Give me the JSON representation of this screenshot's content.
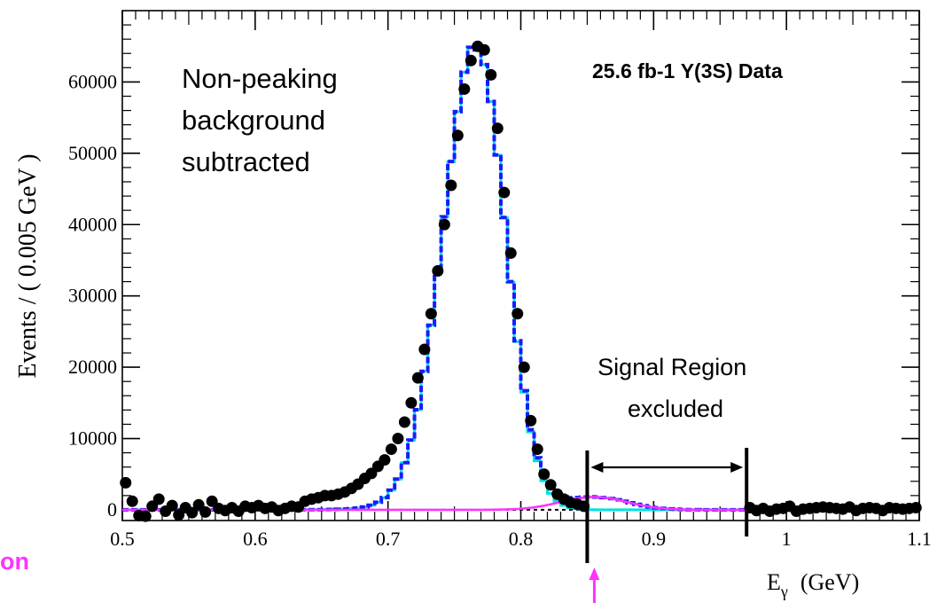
{
  "chart_data": {
    "type": "scatter",
    "xlabel": "E",
    "xlabel_sub": "γ",
    "xlabel_unit": "(GeV)",
    "ylabel": "Events / ( 0.005 GeV )",
    "xlim": [
      0.5,
      1.1
    ],
    "ylim": [
      -1500,
      70000
    ],
    "x_ticks": [
      "0.5",
      "0.6",
      "0.7",
      "0.8",
      "0.9",
      "1",
      "1.1"
    ],
    "y_ticks": [
      "0",
      "10000",
      "20000",
      "30000",
      "40000",
      "50000",
      "60000"
    ],
    "legend_text": "25.6 fb-1 Υ(3S) Data",
    "annotations": {
      "nonpeaking": [
        "Non-peaking",
        "background",
        "subtracted"
      ],
      "signal_region": [
        "Signal Region",
        "excluded"
      ],
      "partial_left_label": "on"
    },
    "signal_region_bounds": [
      0.85,
      0.97
    ],
    "colors": {
      "data": "#000000",
      "total_fit": "#1a1aff",
      "peak_component": "#00e0e0",
      "tail_component": "#ff33ff",
      "baseline": "#000000",
      "arrow": "#ff33ff"
    },
    "series": [
      {
        "x": [
          0.5025,
          0.5075,
          0.5125,
          0.5175,
          0.5225,
          0.5275,
          0.5325,
          0.5375,
          0.5425,
          0.5475,
          0.5525,
          0.5575,
          0.5625,
          0.5675,
          0.5725,
          0.5775,
          0.5825,
          0.5875,
          0.5925,
          0.5975,
          0.6025,
          0.6075,
          0.6125,
          0.6175,
          0.6225,
          0.6275,
          0.6325,
          0.6375,
          0.6425,
          0.6475,
          0.6525,
          0.6575,
          0.6625,
          0.6675,
          0.6725,
          0.6775,
          0.6825,
          0.6875,
          0.6925,
          0.6975,
          0.7025,
          0.7075,
          0.7125,
          0.7175,
          0.7225,
          0.7275,
          0.7325,
          0.7375,
          0.7425,
          0.7475,
          0.7525,
          0.7575,
          0.7625,
          0.7675,
          0.7725,
          0.7775,
          0.7825,
          0.7875,
          0.7925,
          0.7975,
          0.8025,
          0.8075,
          0.8125,
          0.8175,
          0.8225,
          0.8275,
          0.8325,
          0.8375,
          0.8425,
          0.8475,
          0.9725,
          0.9775,
          0.9825,
          0.9875,
          0.9925,
          0.9975,
          1.0025,
          1.0075,
          1.0125,
          1.0175,
          1.0225,
          1.0275,
          1.0325,
          1.0375,
          1.0425,
          1.0475,
          1.0525,
          1.0575,
          1.0625,
          1.0675,
          1.0725,
          1.0775,
          1.0825,
          1.0875,
          1.0925,
          1.0975
        ],
        "y": [
          3800,
          1200,
          -800,
          -900,
          500,
          1500,
          -200,
          600,
          -700,
          300,
          -400,
          700,
          -300,
          1200,
          200,
          -100,
          300,
          -200,
          500,
          300,
          600,
          200,
          400,
          -100,
          200,
          500,
          400,
          1200,
          1500,
          1700,
          2000,
          2000,
          2200,
          2500,
          3000,
          3600,
          4400,
          5100,
          6100,
          7000,
          8500,
          10000,
          12300,
          15000,
          18500,
          22500,
          27500,
          33500,
          40000,
          45500,
          52500,
          59000,
          63000,
          65000,
          64500,
          61000,
          53500,
          44500,
          36000,
          27500,
          20000,
          12500,
          8500,
          5000,
          3500,
          2200,
          1500,
          1000,
          800,
          500,
          300,
          -100,
          200,
          -200,
          100,
          200,
          500,
          -200,
          100,
          200,
          300,
          400,
          300,
          200,
          100,
          400,
          -100,
          200,
          300,
          200,
          -100,
          300,
          200,
          100,
          200,
          300
        ],
        "name": "Data"
      }
    ]
  }
}
